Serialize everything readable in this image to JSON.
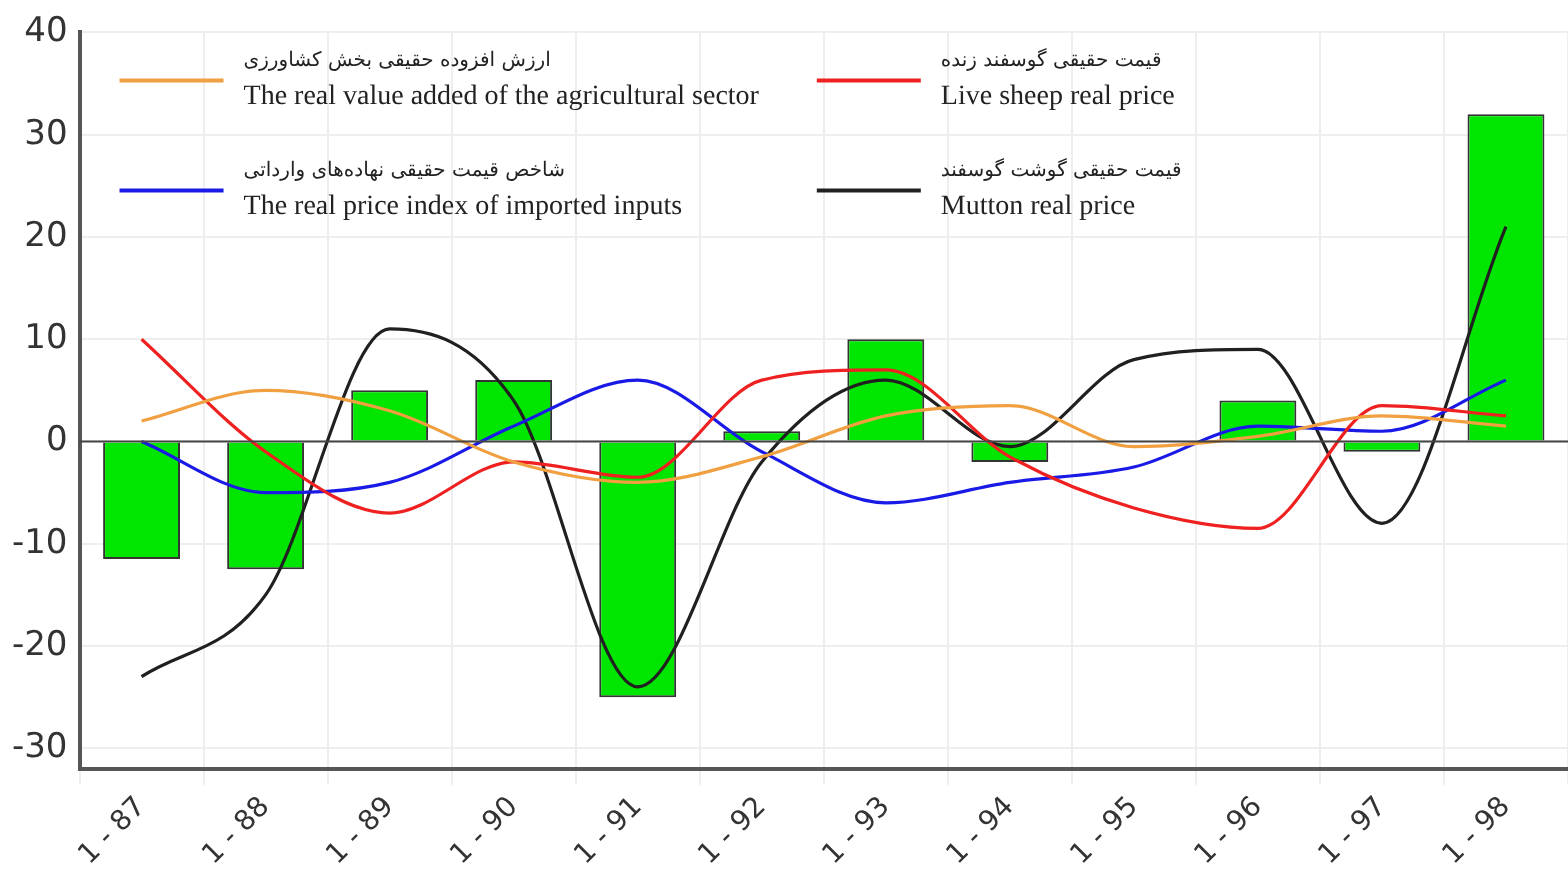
{
  "chart_data": {
    "type": "bar",
    "categories": [
      "1 - 87",
      "1 - 88",
      "1 - 89",
      "1 - 90",
      "1 - 91",
      "1 - 92",
      "1 - 93",
      "1 - 94",
      "1 - 95",
      "1 - 96",
      "1 - 97",
      "1 - 98"
    ],
    "series": [
      {
        "color": "#00e600",
        "values": [
          -11.5,
          -12.5,
          5,
          6,
          -25,
          1,
          10,
          -2,
          null,
          4,
          -1,
          32
        ]
      },
      {
        "type": "line",
        "name": "ارزش افزوده حقیقی بخش کشاورزی\nThe real value added of the agricultural sector",
        "color": "#f0a040",
        "values": [
          2,
          5,
          3,
          -2,
          -4,
          -1.5,
          2.5,
          3.5,
          -0.5,
          0.5,
          2.5,
          1.5
        ]
      },
      {
        "type": "line",
        "name": "قیمت حقیقی گوسفند زنده\nLive sheep real price",
        "color": "#ee2020",
        "values": [
          10,
          -1,
          -7,
          -2,
          -3.5,
          6,
          7,
          -1.5,
          -6.5,
          -8.5,
          3.5,
          2.5
        ]
      },
      {
        "type": "line",
        "name": "شاخص قیمت حقیقی نهاده‌های وارداتی\nThe real price index of imported inputs",
        "color": "#1a1ae6",
        "values": [
          0,
          -5,
          -4,
          1.5,
          6,
          -1,
          -6,
          -4,
          -2.5,
          1.5,
          1,
          6
        ]
      },
      {
        "type": "line",
        "name": "قیمت حقیقی گوشت گوسفند\nMutton real price",
        "color": "#202020",
        "values": [
          -23,
          -15,
          11,
          4,
          -24,
          -2,
          6,
          -0.5,
          8,
          9,
          -8,
          21
        ]
      }
    ],
    "ylim": [
      -32,
      40
    ],
    "yticks": [
      -30,
      -20,
      -10,
      0,
      10,
      20,
      30,
      40
    ],
    "grid": true,
    "legend": "top",
    "line_style": "solid",
    "marker": "none"
  }
}
